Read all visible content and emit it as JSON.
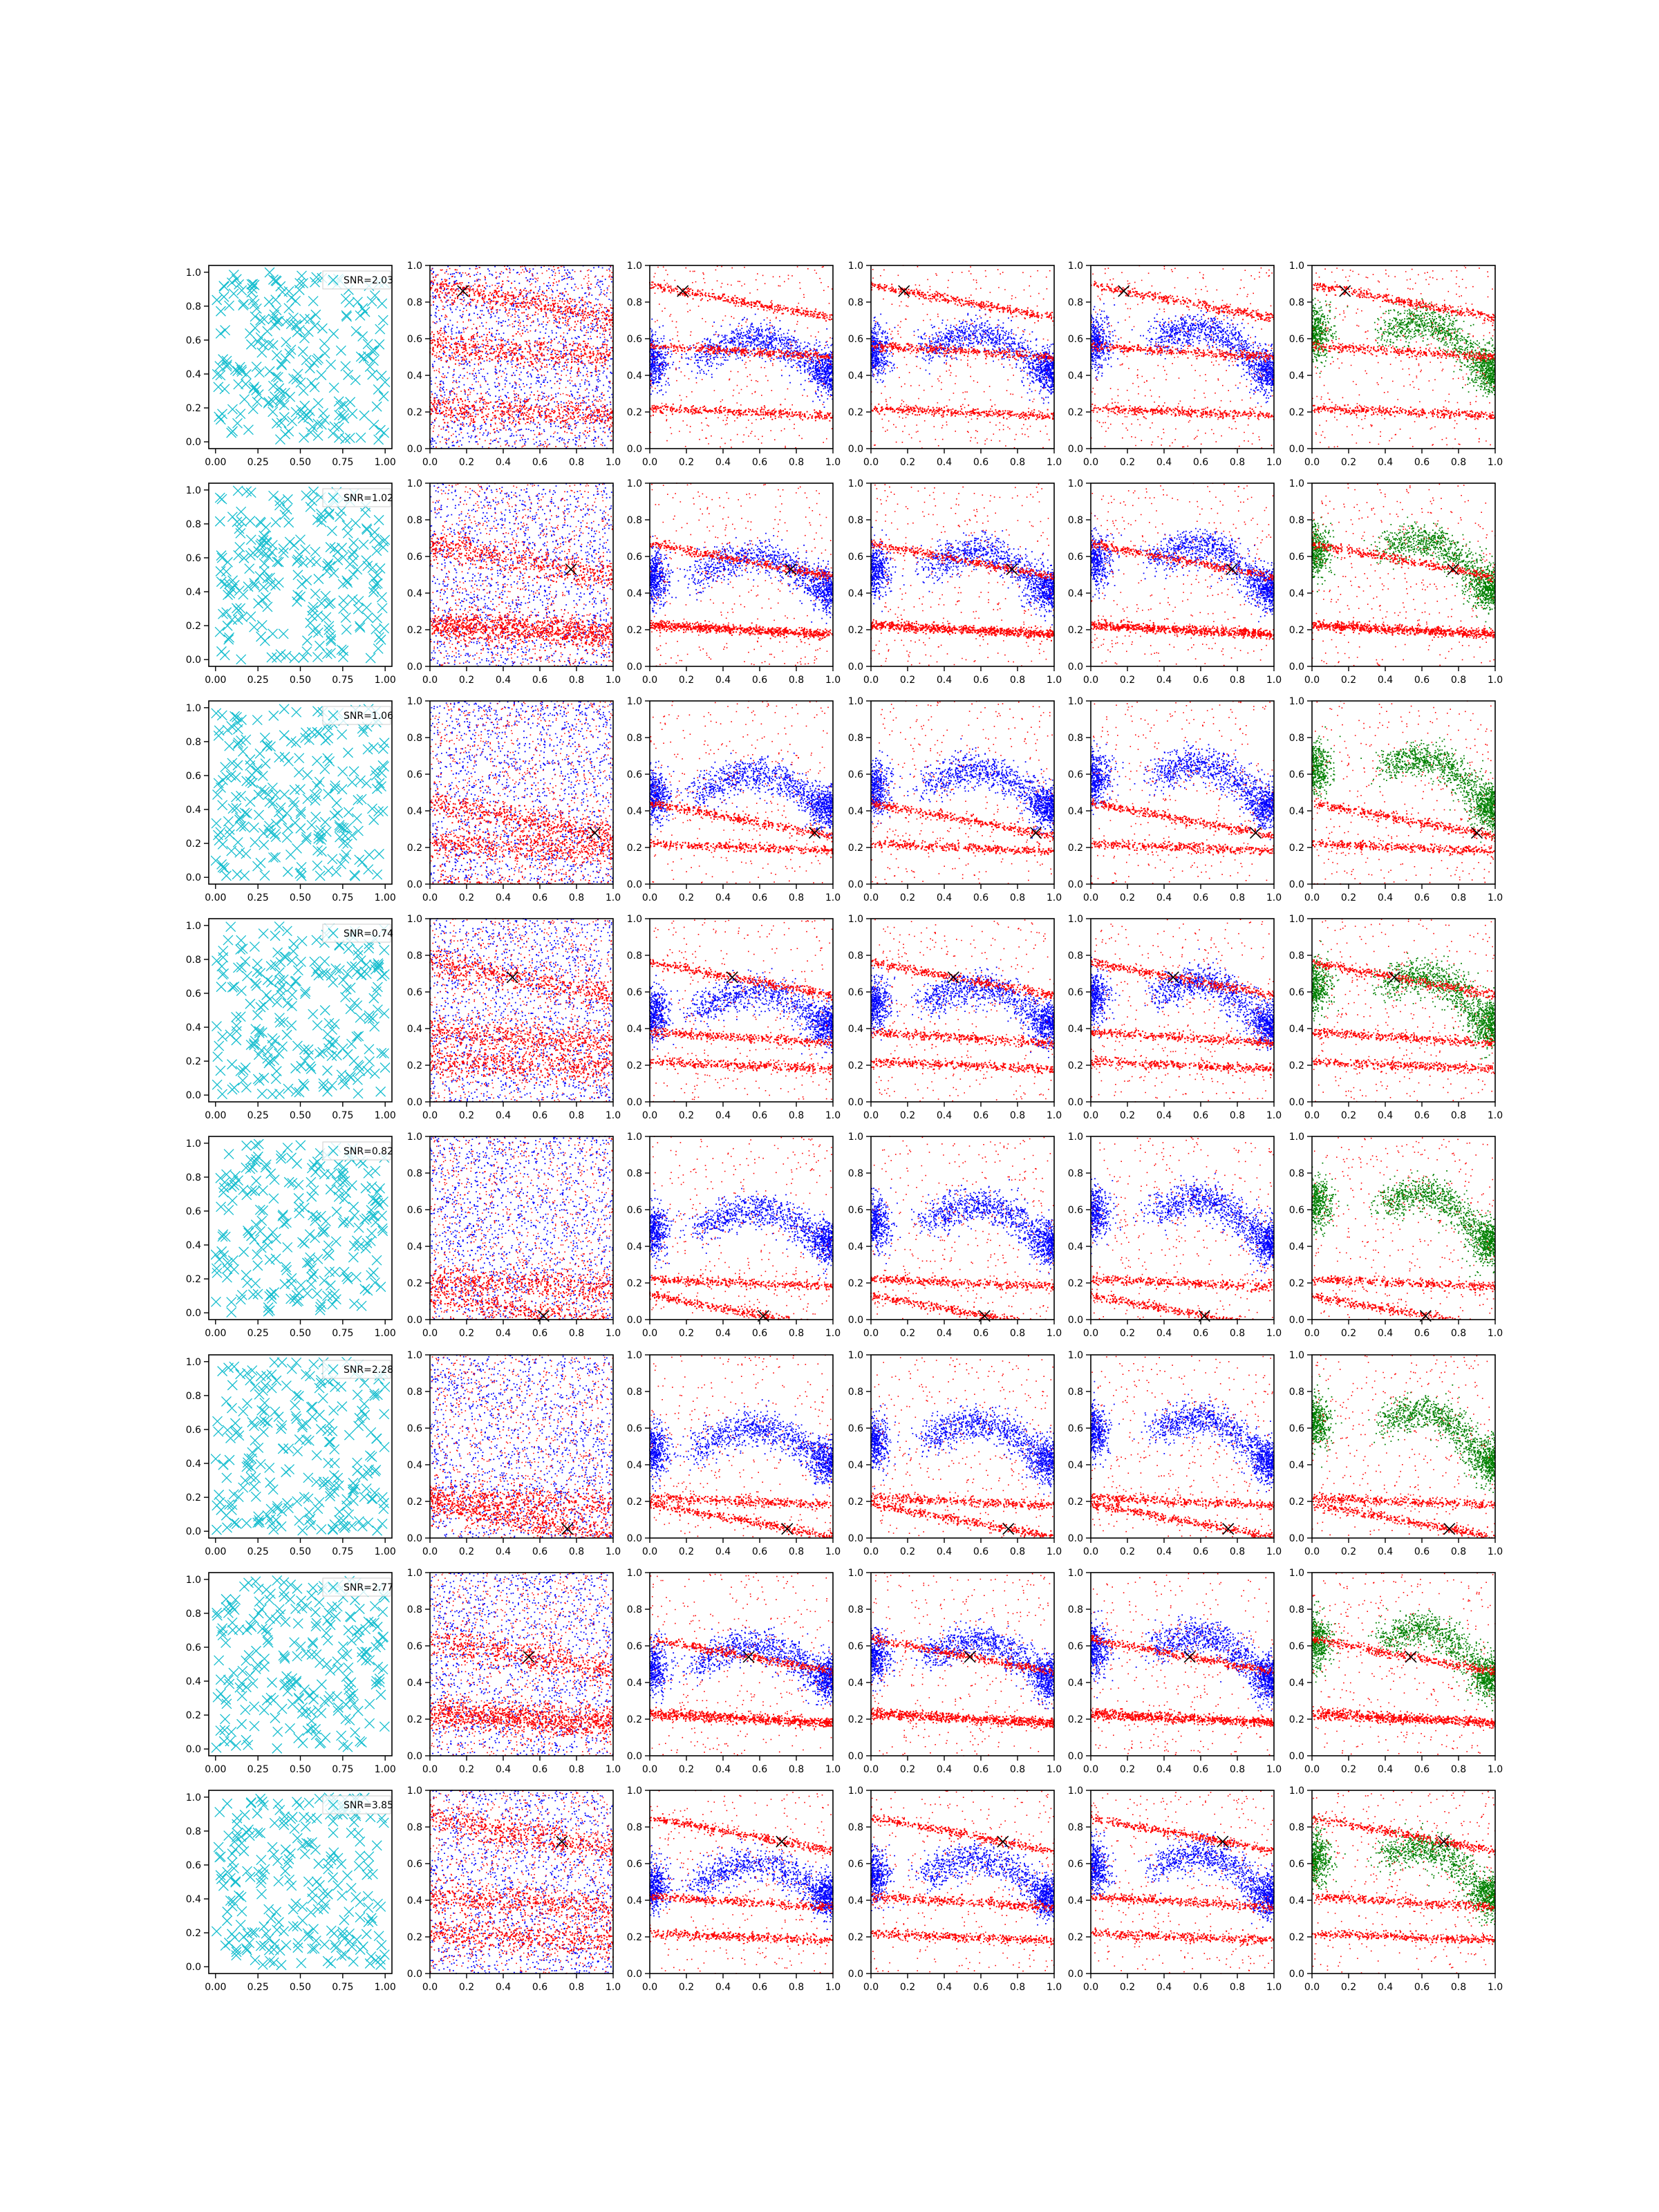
{
  "figure": {
    "rows": 8,
    "cols": 6,
    "colors": {
      "uniform": "#17becf",
      "dots_a": "#ff0000",
      "dots_b": "#0000ff",
      "dots_c": "#008000",
      "marker": "#000000"
    }
  },
  "axes_ticks": {
    "col0_x": [
      "0.00",
      "0.25",
      "0.50",
      "0.75",
      "1.00"
    ],
    "col0_y": [
      "0.0",
      "0.2",
      "0.4",
      "0.6",
      "0.8",
      "1.0"
    ],
    "scatter_x": [
      "0.0",
      "0.2",
      "0.4",
      "0.6",
      "0.8",
      "1.0"
    ],
    "scatter_y": [
      "0.0",
      "0.2",
      "0.4",
      "0.6",
      "0.8",
      "1.0"
    ]
  },
  "chart_data": [
    {
      "type": "scatter",
      "row": 0,
      "legend": "SNR=2.03",
      "marker_x": 0.18,
      "marker_y": 0.86,
      "xlim": [
        0,
        1
      ],
      "ylim": [
        0,
        1
      ]
    },
    {
      "type": "scatter",
      "row": 1,
      "legend": "SNR=1.02",
      "marker_x": 0.77,
      "marker_y": 0.53,
      "xlim": [
        0,
        1
      ],
      "ylim": [
        0,
        1
      ]
    },
    {
      "type": "scatter",
      "row": 2,
      "legend": "SNR=1.06",
      "marker_x": 0.9,
      "marker_y": 0.28,
      "xlim": [
        0,
        1
      ],
      "ylim": [
        0,
        1
      ]
    },
    {
      "type": "scatter",
      "row": 3,
      "legend": "SNR=0.74",
      "marker_x": 0.45,
      "marker_y": 0.68,
      "xlim": [
        0,
        1
      ],
      "ylim": [
        0,
        1
      ]
    },
    {
      "type": "scatter",
      "row": 4,
      "legend": "SNR=0.82",
      "marker_x": 0.62,
      "marker_y": 0.02,
      "xlim": [
        0,
        1
      ],
      "ylim": [
        0,
        1
      ]
    },
    {
      "type": "scatter",
      "row": 5,
      "legend": "SNR=2.28",
      "marker_x": 0.75,
      "marker_y": 0.05,
      "xlim": [
        0,
        1
      ],
      "ylim": [
        0,
        1
      ]
    },
    {
      "type": "scatter",
      "row": 6,
      "legend": "SNR=2.77",
      "marker_x": 0.54,
      "marker_y": 0.54,
      "xlim": [
        0,
        1
      ],
      "ylim": [
        0,
        1
      ]
    },
    {
      "type": "scatter",
      "row": 7,
      "legend": "SNR=3.85",
      "marker_x": 0.72,
      "marker_y": 0.72,
      "xlim": [
        0,
        1
      ],
      "ylim": [
        0,
        1
      ]
    }
  ]
}
